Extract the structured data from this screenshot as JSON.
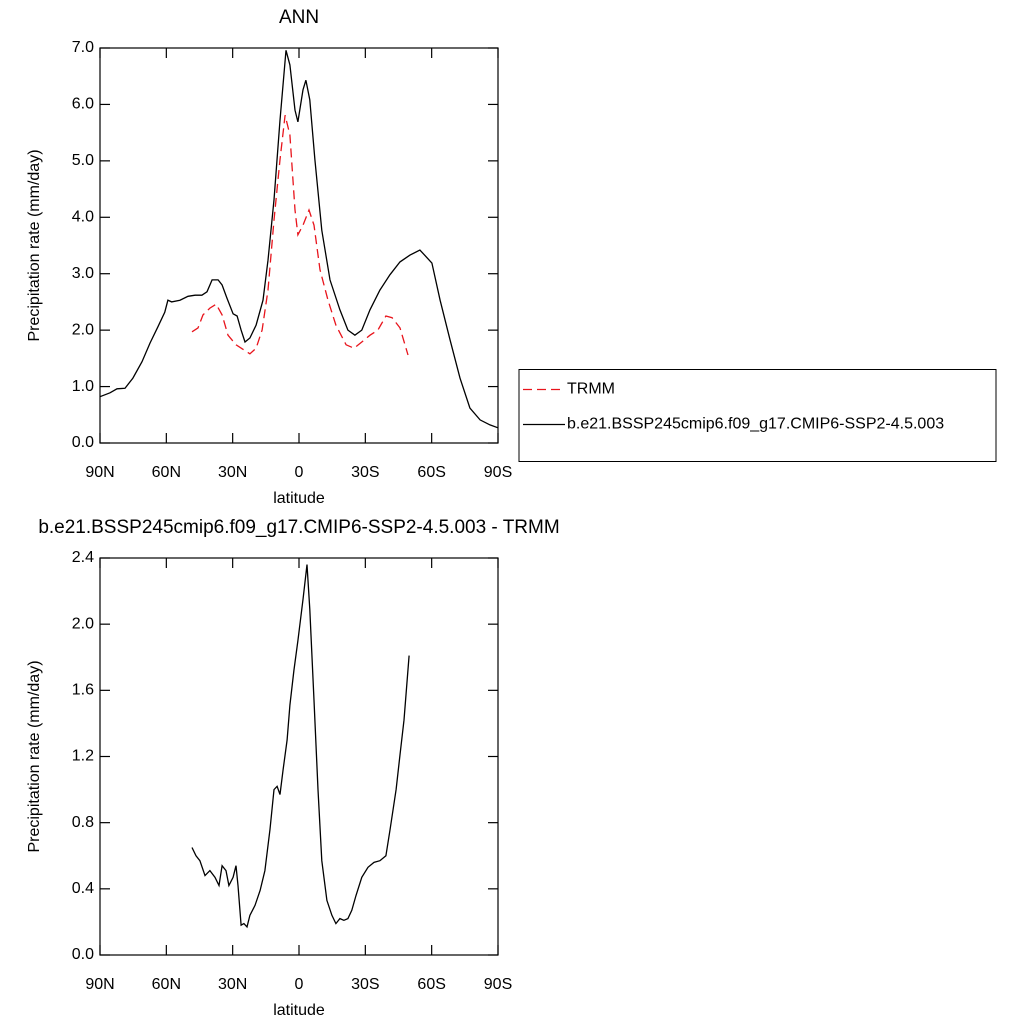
{
  "chart_data": [
    {
      "type": "line",
      "title": "ANN",
      "xlabel": "latitude",
      "ylabel": "Precipitation rate (mm/day)",
      "xlim": [
        90,
        -90
      ],
      "xticks": [
        {
          "value": 90,
          "label": "90N"
        },
        {
          "value": 60,
          "label": "60N"
        },
        {
          "value": 30,
          "label": "30N"
        },
        0,
        {
          "value": -30,
          "label": "30S"
        },
        {
          "value": -60,
          "label": "60S"
        },
        {
          "value": -90,
          "label": "90S"
        }
      ],
      "ylim": [
        0,
        7
      ],
      "yticks": [
        {
          "value": 0,
          "label": "0.0"
        },
        {
          "value": 1,
          "label": "1.0"
        },
        {
          "value": 2,
          "label": "2.0"
        },
        {
          "value": 3,
          "label": "3.0"
        },
        {
          "value": 4,
          "label": "4.0"
        },
        {
          "value": 5,
          "label": "5.0"
        },
        {
          "value": 6,
          "label": "6.0"
        },
        {
          "value": 7,
          "label": "7.0"
        }
      ],
      "legend": "right",
      "series": [
        {
          "name": "TRMM",
          "color": "#e8141c",
          "dash": true,
          "x": [
            48.4,
            45.7,
            43.4,
            40.3,
            37.5,
            34.8,
            32.1,
            28.5,
            24.9,
            22.2,
            19.4,
            16.7,
            14.0,
            11.3,
            8.6,
            6.3,
            4.1,
            1.8,
            0.5,
            -1.8,
            -4.5,
            -6.8,
            -9.5,
            -13.1,
            -16.7,
            -21.3,
            -24.9,
            -28.4,
            -32.1,
            -35.7,
            -39.3,
            -42.1,
            -45.7,
            -49.3
          ],
          "values": [
            1.97,
            2.04,
            2.27,
            2.39,
            2.46,
            2.27,
            1.91,
            1.74,
            1.65,
            1.58,
            1.68,
            2.0,
            2.71,
            3.95,
            5.02,
            5.81,
            5.46,
            4.13,
            3.69,
            3.86,
            4.13,
            3.86,
            3.07,
            2.53,
            2.09,
            1.74,
            1.68,
            1.79,
            1.91,
            2.0,
            2.25,
            2.22,
            2.04,
            1.56
          ]
        },
        {
          "name": "b.e21.BSSP245cmip6.f09_g17.CMIP6-SSP2-4.5.003",
          "color": "#000000",
          "dash": false,
          "x": [
            90,
            85.5,
            82.3,
            78.7,
            75.1,
            71.0,
            67.4,
            63.8,
            60.7,
            59.3,
            57.6,
            53.8,
            50.2,
            47.0,
            43.9,
            41.6,
            39.3,
            36.6,
            34.8,
            32.6,
            29.8,
            28.0,
            26.2,
            24.4,
            22.2,
            19.4,
            16.3,
            14.0,
            11.3,
            8.6,
            5.9,
            4.1,
            1.8,
            0.5,
            -1.8,
            -3.1,
            -4.9,
            -7.2,
            -10.3,
            -14.0,
            -18.5,
            -22.1,
            -25.3,
            -28.4,
            -32.1,
            -36.6,
            -41.1,
            -45.7,
            -50.2,
            -54.7,
            -60.1,
            -63.8,
            -68.3,
            -72.8,
            -77.3,
            -81.9,
            -86.4,
            -90
          ],
          "values": [
            0.82,
            0.89,
            0.96,
            0.97,
            1.15,
            1.44,
            1.77,
            2.06,
            2.32,
            2.53,
            2.5,
            2.53,
            2.6,
            2.62,
            2.62,
            2.68,
            2.89,
            2.89,
            2.8,
            2.57,
            2.29,
            2.25,
            2.0,
            1.79,
            1.86,
            2.09,
            2.53,
            3.24,
            4.31,
            5.72,
            6.96,
            6.7,
            5.9,
            5.69,
            6.26,
            6.43,
            6.08,
            5.02,
            3.77,
            2.89,
            2.36,
            2.0,
            1.91,
            2.0,
            2.36,
            2.71,
            2.98,
            3.21,
            3.33,
            3.42,
            3.19,
            2.53,
            1.83,
            1.15,
            0.62,
            0.41,
            0.32,
            0.27
          ]
        }
      ]
    },
    {
      "type": "line",
      "title": "b.e21.BSSP245cmip6.f09_g17.CMIP6-SSP2-4.5.003 - TRMM",
      "xlabel": "latitude",
      "ylabel": "Precipitation rate (mm/day)",
      "xlim": [
        90,
        -90
      ],
      "xticks": [
        {
          "value": 90,
          "label": "90N"
        },
        {
          "value": 60,
          "label": "60N"
        },
        {
          "value": 30,
          "label": "30N"
        },
        0,
        {
          "value": -30,
          "label": "30S"
        },
        {
          "value": -60,
          "label": "60S"
        },
        {
          "value": -90,
          "label": "90S"
        }
      ],
      "ylim": [
        0,
        2.4
      ],
      "yticks": [
        {
          "value": 0,
          "label": "0.0"
        },
        0.4,
        0.8,
        1.2,
        1.6,
        {
          "value": 2,
          "label": "2.0"
        },
        2.4
      ],
      "color": "#000000",
      "x": [
        48.4,
        46.6,
        44.8,
        42.5,
        40.3,
        38.0,
        36.2,
        34.8,
        33.0,
        31.7,
        29.8,
        28.5,
        27.6,
        26.2,
        24.9,
        23.5,
        22.2,
        19.9,
        17.6,
        15.4,
        13.1,
        11.3,
        9.9,
        8.6,
        7.2,
        5.4,
        4.1,
        2.3,
        0.5,
        -1.8,
        -3.6,
        -4.9,
        -6.8,
        -8.6,
        -10.3,
        -12.6,
        -14.9,
        -16.7,
        -18.5,
        -20.3,
        -22.1,
        -23.9,
        -25.8,
        -28.4,
        -31.2,
        -33.9,
        -36.6,
        -39.3,
        -41.2,
        -43.9,
        -45.7,
        -47.5,
        -49.8
      ],
      "values": [
        0.65,
        0.6,
        0.57,
        0.48,
        0.51,
        0.47,
        0.42,
        0.54,
        0.51,
        0.42,
        0.47,
        0.54,
        0.42,
        0.18,
        0.19,
        0.17,
        0.24,
        0.3,
        0.39,
        0.51,
        0.76,
        1.0,
        1.02,
        0.97,
        1.12,
        1.3,
        1.51,
        1.72,
        1.9,
        2.15,
        2.36,
        2.09,
        1.54,
        1.0,
        0.57,
        0.33,
        0.24,
        0.19,
        0.22,
        0.21,
        0.22,
        0.27,
        0.36,
        0.47,
        0.53,
        0.56,
        0.57,
        0.6,
        0.76,
        1.0,
        1.21,
        1.42,
        1.81
      ]
    }
  ]
}
